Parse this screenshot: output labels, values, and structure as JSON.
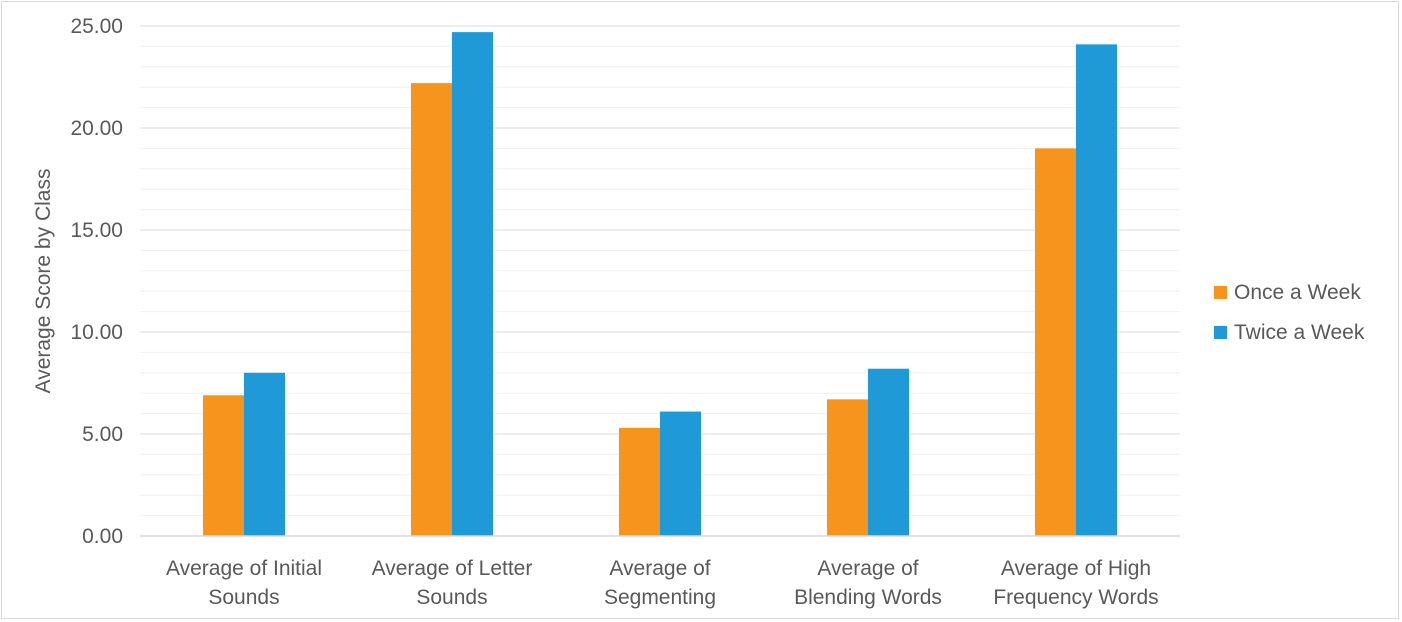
{
  "chart_data": {
    "type": "bar",
    "title": "",
    "xlabel": "",
    "ylabel": "Average Score by Class",
    "ylim": [
      0,
      25
    ],
    "ytick_step": 5,
    "ytick_labels": [
      "0.00",
      "5.00",
      "10.00",
      "15.00",
      "20.00",
      "25.00"
    ],
    "grid": true,
    "legend_position": "right",
    "categories": [
      [
        "Average of Initial",
        "Sounds"
      ],
      [
        "Average of Letter",
        "Sounds"
      ],
      [
        "Average of",
        "Segmenting"
      ],
      [
        "Average of",
        "Blending Words"
      ],
      [
        "Average of High",
        "Frequency Words"
      ]
    ],
    "series": [
      {
        "name": "Once a Week",
        "color": "#f7941d",
        "values": [
          6.9,
          22.2,
          5.3,
          6.7,
          19.0
        ]
      },
      {
        "name": "Twice a Week",
        "color": "#1f9ad6",
        "values": [
          8.0,
          24.7,
          6.1,
          8.2,
          24.1
        ]
      }
    ]
  }
}
